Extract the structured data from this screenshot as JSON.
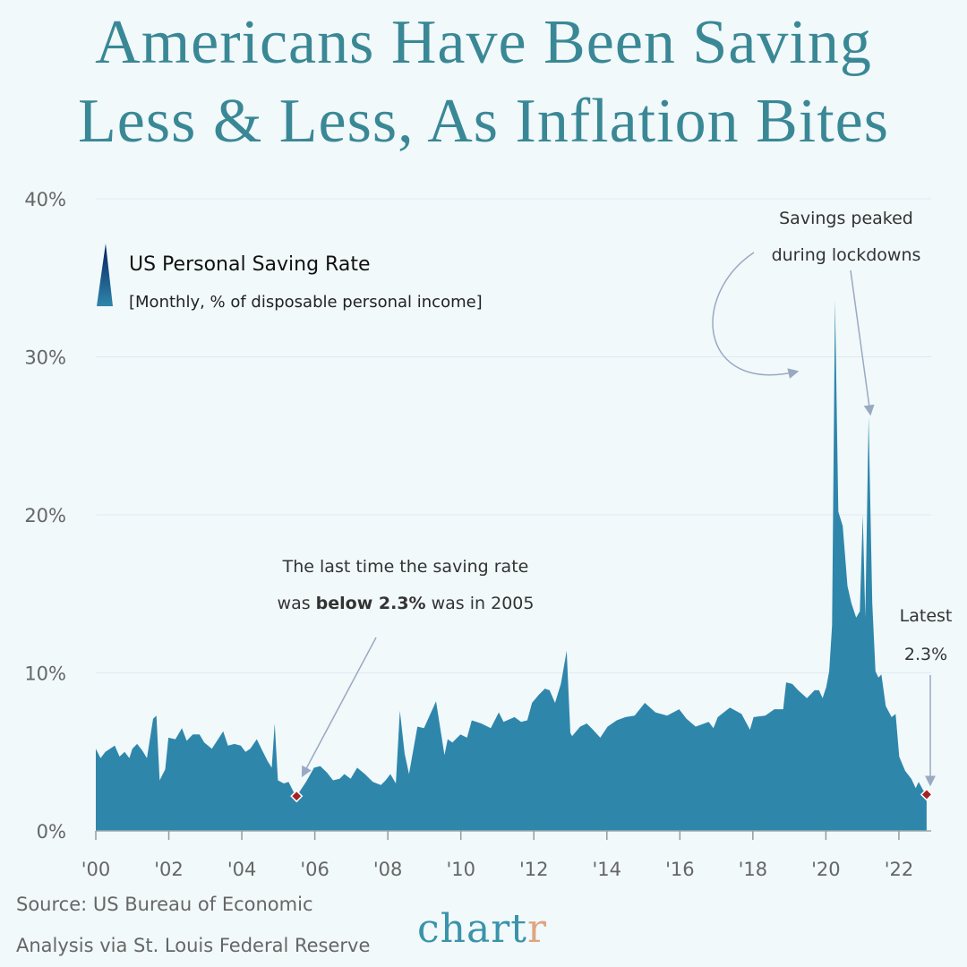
{
  "title": {
    "line1": "Americans Have Been Saving",
    "line2": "Less & Less, As Inflation Bites"
  },
  "colors": {
    "title": "#3a8896",
    "area_top": "#04205e",
    "area_bottom": "#2f86ab",
    "marker": "#a52323",
    "arrow": "#9aa9c2"
  },
  "legend": {
    "series": "US Personal Saving Rate",
    "subtitle": "[Monthly, % of disposable personal income]"
  },
  "annotations": {
    "peak_line1": "Savings peaked",
    "peak_line2": "during lockdowns",
    "low_line1": "The last time the saving rate",
    "low_line2_a": "was ",
    "low_line2_b": "below 2.3%",
    "low_line2_c": " was in 2005",
    "latest_label": "Latest",
    "latest_value": "2.3%"
  },
  "source": {
    "line1": "Source: US Bureau of Economic",
    "line2": "Analysis via St. Louis Federal Reserve"
  },
  "logo": {
    "main": "chart",
    "accent": "r"
  },
  "chart_data": {
    "type": "area",
    "series_name": "US Personal Saving Rate",
    "ylim": [
      0,
      40
    ],
    "xlim": [
      2000,
      2022.8
    ],
    "grid": true,
    "legend_position": "top-left",
    "yticks": [
      0,
      10,
      20,
      30,
      40
    ],
    "ytick_labels": [
      "0%",
      "10%",
      "20%",
      "30%",
      "40%"
    ],
    "xticks": [
      2000,
      2002,
      2004,
      2006,
      2008,
      2010,
      2012,
      2014,
      2016,
      2018,
      2020,
      2022
    ],
    "xtick_labels": [
      "'00",
      "'02",
      "'04",
      "'06",
      "'08",
      "'10",
      "'12",
      "'14",
      "'16",
      "'18",
      "'20",
      "'22"
    ],
    "markers": [
      {
        "x": 2005.5,
        "y": 2.2
      },
      {
        "x": 2022.76,
        "y": 2.3
      }
    ],
    "points": [
      [
        2000.0,
        5.2
      ],
      [
        2000.13,
        4.6
      ],
      [
        2000.26,
        5.0
      ],
      [
        2000.52,
        5.4
      ],
      [
        2000.65,
        4.7
      ],
      [
        2000.79,
        5.0
      ],
      [
        2000.92,
        4.6
      ],
      [
        2001.0,
        5.2
      ],
      [
        2001.13,
        5.5
      ],
      [
        2001.27,
        5.1
      ],
      [
        2001.4,
        4.6
      ],
      [
        2001.57,
        7.1
      ],
      [
        2001.66,
        7.3
      ],
      [
        2001.75,
        3.2
      ],
      [
        2001.9,
        3.9
      ],
      [
        2001.99,
        5.9
      ],
      [
        2002.18,
        5.8
      ],
      [
        2002.36,
        6.5
      ],
      [
        2002.49,
        5.7
      ],
      [
        2002.66,
        6.1
      ],
      [
        2002.84,
        6.1
      ],
      [
        2002.97,
        5.6
      ],
      [
        2003.18,
        5.2
      ],
      [
        2003.32,
        5.7
      ],
      [
        2003.49,
        6.3
      ],
      [
        2003.62,
        5.4
      ],
      [
        2003.8,
        5.5
      ],
      [
        2003.97,
        5.4
      ],
      [
        2004.1,
        5.0
      ],
      [
        2004.23,
        5.2
      ],
      [
        2004.41,
        5.8
      ],
      [
        2004.58,
        5.0
      ],
      [
        2004.71,
        4.4
      ],
      [
        2004.82,
        4.0
      ],
      [
        2004.9,
        6.8
      ],
      [
        2004.99,
        3.2
      ],
      [
        2005.15,
        3.0
      ],
      [
        2005.28,
        3.1
      ],
      [
        2005.41,
        2.5
      ],
      [
        2005.5,
        2.2
      ],
      [
        2005.76,
        3.1
      ],
      [
        2005.98,
        4.0
      ],
      [
        2006.15,
        4.1
      ],
      [
        2006.33,
        3.7
      ],
      [
        2006.5,
        3.2
      ],
      [
        2006.68,
        3.3
      ],
      [
        2006.81,
        3.6
      ],
      [
        2006.98,
        3.3
      ],
      [
        2007.16,
        4.0
      ],
      [
        2007.37,
        3.6
      ],
      [
        2007.59,
        3.1
      ],
      [
        2007.81,
        2.9
      ],
      [
        2007.94,
        3.2
      ],
      [
        2008.07,
        3.6
      ],
      [
        2008.22,
        3.0
      ],
      [
        2008.33,
        7.6
      ],
      [
        2008.46,
        4.9
      ],
      [
        2008.58,
        3.6
      ],
      [
        2008.81,
        6.6
      ],
      [
        2008.99,
        6.5
      ],
      [
        2009.32,
        8.2
      ],
      [
        2009.55,
        4.8
      ],
      [
        2009.64,
        5.8
      ],
      [
        2009.77,
        5.6
      ],
      [
        2009.99,
        6.1
      ],
      [
        2010.17,
        5.9
      ],
      [
        2010.3,
        7.0
      ],
      [
        2010.56,
        6.8
      ],
      [
        2010.82,
        6.5
      ],
      [
        2011.04,
        7.5
      ],
      [
        2011.17,
        6.9
      ],
      [
        2011.47,
        7.2
      ],
      [
        2011.65,
        6.9
      ],
      [
        2011.82,
        7.0
      ],
      [
        2011.95,
        8.1
      ],
      [
        2012.13,
        8.6
      ],
      [
        2012.3,
        9.0
      ],
      [
        2012.43,
        8.9
      ],
      [
        2012.58,
        8.1
      ],
      [
        2012.74,
        9.3
      ],
      [
        2012.9,
        11.4
      ],
      [
        2013.0,
        6.2
      ],
      [
        2013.05,
        6.0
      ],
      [
        2013.27,
        6.6
      ],
      [
        2013.45,
        6.8
      ],
      [
        2013.62,
        6.4
      ],
      [
        2013.82,
        5.9
      ],
      [
        2014.02,
        6.6
      ],
      [
        2014.27,
        7.0
      ],
      [
        2014.51,
        7.2
      ],
      [
        2014.76,
        7.3
      ],
      [
        2015.04,
        8.1
      ],
      [
        2015.33,
        7.5
      ],
      [
        2015.65,
        7.3
      ],
      [
        2015.98,
        7.7
      ],
      [
        2016.18,
        7.1
      ],
      [
        2016.43,
        6.6
      ],
      [
        2016.79,
        6.9
      ],
      [
        2016.92,
        6.5
      ],
      [
        2017.04,
        7.2
      ],
      [
        2017.37,
        7.8
      ],
      [
        2017.69,
        7.4
      ],
      [
        2017.92,
        6.4
      ],
      [
        2018.02,
        7.2
      ],
      [
        2018.34,
        7.3
      ],
      [
        2018.59,
        7.7
      ],
      [
        2018.83,
        7.7
      ],
      [
        2018.91,
        9.4
      ],
      [
        2019.08,
        9.3
      ],
      [
        2019.24,
        8.9
      ],
      [
        2019.48,
        8.4
      ],
      [
        2019.69,
        8.9
      ],
      [
        2019.81,
        8.9
      ],
      [
        2019.91,
        8.4
      ],
      [
        2020.01,
        9.1
      ],
      [
        2020.09,
        10.1
      ],
      [
        2020.17,
        13.0
      ],
      [
        2020.25,
        33.6
      ],
      [
        2020.34,
        20.2
      ],
      [
        2020.46,
        19.3
      ],
      [
        2020.59,
        15.5
      ],
      [
        2020.7,
        14.4
      ],
      [
        2020.83,
        13.5
      ],
      [
        2020.93,
        13.9
      ],
      [
        2021.01,
        20.0
      ],
      [
        2021.08,
        13.5
      ],
      [
        2021.17,
        26.2
      ],
      [
        2021.27,
        14.4
      ],
      [
        2021.36,
        10.1
      ],
      [
        2021.44,
        9.7
      ],
      [
        2021.52,
        9.9
      ],
      [
        2021.64,
        7.9
      ],
      [
        2021.8,
        7.2
      ],
      [
        2021.91,
        7.4
      ],
      [
        2022.01,
        4.7
      ],
      [
        2022.17,
        3.8
      ],
      [
        2022.34,
        3.3
      ],
      [
        2022.46,
        2.7
      ],
      [
        2022.54,
        3.1
      ],
      [
        2022.66,
        2.6
      ],
      [
        2022.76,
        2.3
      ]
    ]
  }
}
